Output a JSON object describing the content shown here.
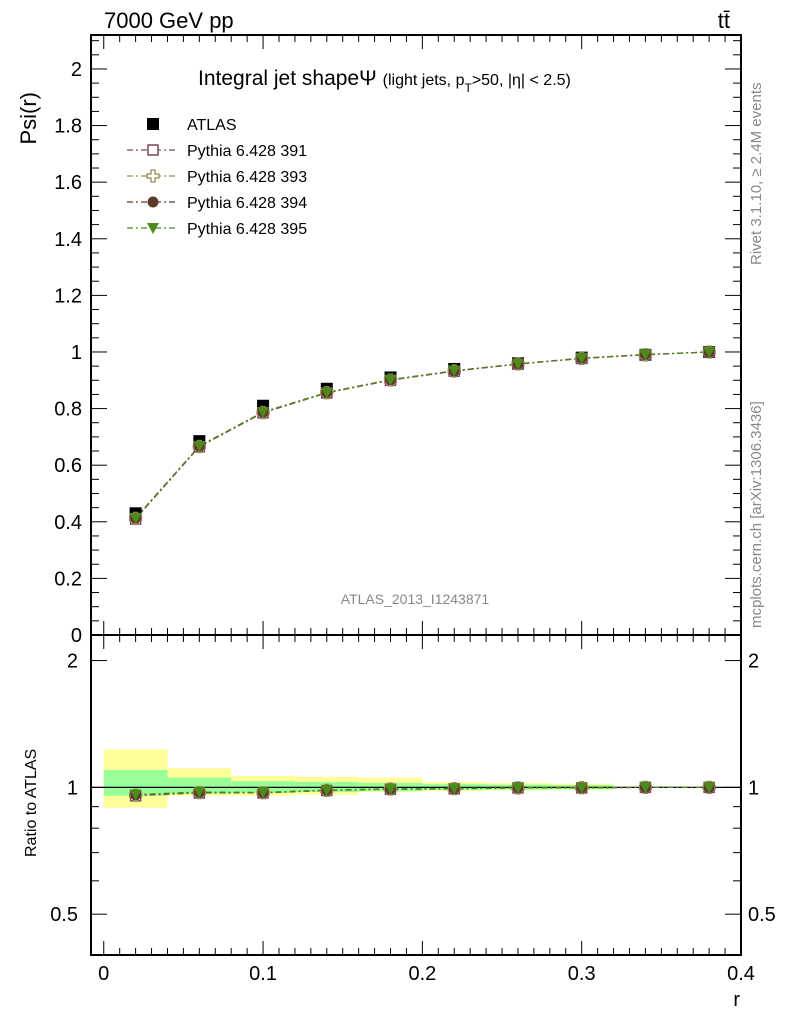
{
  "header": {
    "energy_label": "7000 GeV pp",
    "process_label": "tt̄"
  },
  "side_labels": {
    "rivet": "Rivet 3.1.10, ≥ 2.4M events",
    "mcplots": "mcplots.cern.ch [arXiv:1306.3436]"
  },
  "watermark": "ATLAS_2013_I1243871",
  "chart_data": [
    {
      "type": "scatter",
      "title_main": "Integral jet shape",
      "title_symbol": "Ψ",
      "title_detail_a": "(light jets, p",
      "title_detail_sub": "T",
      "title_detail_b": ">50, |η| < 2.5)",
      "ylabel": "Psi(r)",
      "xlabel": "r",
      "xlim": [
        -0.008,
        0.4
      ],
      "ylim": [
        0,
        2.12
      ],
      "yticks": [
        0,
        0.2,
        0.4,
        0.6,
        0.8,
        1,
        1.2,
        1.4,
        1.6,
        1.8,
        2
      ],
      "ytick_labels": [
        "0",
        "0.2",
        "0.4",
        "0.6",
        "0.8",
        "1",
        "1.2",
        "1.4",
        "1.6",
        "1.8",
        "2"
      ],
      "x": [
        0.02,
        0.06,
        0.1,
        0.14,
        0.18,
        0.22,
        0.26,
        0.3,
        0.34,
        0.38
      ],
      "legend_position": "top-left",
      "series": [
        {
          "name": "ATLAS",
          "marker": "filled-square",
          "color": "#000000",
          "line": false,
          "values": [
            0.43,
            0.685,
            0.81,
            0.87,
            0.91,
            0.94,
            0.96,
            0.98,
            0.99,
            1.0
          ]
        },
        {
          "name": "Pythia 6.428 391",
          "marker": "open-square",
          "color": "#7b4a5a",
          "line": true,
          "values": [
            0.41,
            0.665,
            0.785,
            0.855,
            0.9,
            0.932,
            0.957,
            0.977,
            0.99,
            1.0
          ]
        },
        {
          "name": "Pythia 6.428 393",
          "marker": "open-cross",
          "color": "#9a8a55",
          "line": true,
          "values": [
            0.412,
            0.666,
            0.786,
            0.856,
            0.901,
            0.933,
            0.958,
            0.977,
            0.99,
            1.0
          ]
        },
        {
          "name": "Pythia 6.428 394",
          "marker": "filled-circle",
          "color": "#5c3c28",
          "line": true,
          "values": [
            0.413,
            0.667,
            0.787,
            0.857,
            0.902,
            0.933,
            0.958,
            0.978,
            0.991,
            1.0
          ]
        },
        {
          "name": "Pythia 6.428 395",
          "marker": "filled-triangle-down",
          "color": "#4c8a1a",
          "line": true,
          "values": [
            0.414,
            0.668,
            0.788,
            0.857,
            0.902,
            0.934,
            0.958,
            0.978,
            0.991,
            1.0
          ]
        }
      ]
    },
    {
      "type": "scatter",
      "ylabel": "Ratio to ATLAS",
      "xlabel": "r",
      "scale": "log",
      "ylim": [
        0.4,
        2.3
      ],
      "yticks": [
        0.5,
        1,
        2
      ],
      "ytick_labels": [
        "0.5",
        "1",
        "2"
      ],
      "xticks": [
        0,
        0.1,
        0.2,
        0.3,
        0.4
      ],
      "xtick_labels": [
        "0",
        "0.1",
        "0.2",
        "0.3",
        "0.4"
      ],
      "x": [
        0.02,
        0.06,
        0.1,
        0.14,
        0.18,
        0.22,
        0.26,
        0.3,
        0.34,
        0.38
      ],
      "uncertainty_bands": [
        {
          "x0": 0.0,
          "x1": 0.04,
          "stat": [
            0.955,
            1.1
          ],
          "total": [
            0.895,
            1.23
          ]
        },
        {
          "x0": 0.04,
          "x1": 0.08,
          "stat": [
            0.965,
            1.055
          ],
          "total": [
            0.955,
            1.11
          ]
        },
        {
          "x0": 0.08,
          "x1": 0.12,
          "stat": [
            0.97,
            1.035
          ],
          "total": [
            0.955,
            1.065
          ]
        },
        {
          "x0": 0.12,
          "x1": 0.16,
          "stat": [
            0.975,
            1.03
          ],
          "total": [
            0.96,
            1.06
          ]
        },
        {
          "x0": 0.16,
          "x1": 0.2,
          "stat": [
            0.98,
            1.025
          ],
          "total": [
            0.975,
            1.055
          ]
        },
        {
          "x0": 0.2,
          "x1": 0.24,
          "stat": [
            0.985,
            1.018
          ],
          "total": [
            0.98,
            1.03
          ]
        },
        {
          "x0": 0.24,
          "x1": 0.28,
          "stat": [
            0.988,
            1.015
          ],
          "total": [
            0.983,
            1.025
          ]
        },
        {
          "x0": 0.28,
          "x1": 0.32,
          "stat": [
            0.99,
            1.012
          ],
          "total": [
            0.986,
            1.02
          ]
        }
      ],
      "series": [
        {
          "name": "Pythia 6.428 391",
          "values": [
            0.955,
            0.97,
            0.97,
            0.983,
            0.99,
            0.992,
            0.997,
            0.997,
            1.0,
            1.0
          ]
        },
        {
          "name": "Pythia 6.428 393",
          "values": [
            0.958,
            0.972,
            0.971,
            0.984,
            0.991,
            0.993,
            0.997,
            0.998,
            1.0,
            1.0
          ]
        },
        {
          "name": "Pythia 6.428 394",
          "values": [
            0.96,
            0.973,
            0.972,
            0.985,
            0.991,
            0.993,
            0.998,
            0.998,
            1.0,
            1.0
          ]
        },
        {
          "name": "Pythia 6.428 395",
          "values": [
            0.962,
            0.975,
            0.973,
            0.985,
            0.992,
            0.994,
            0.998,
            0.998,
            1.0,
            1.0
          ]
        }
      ]
    }
  ]
}
